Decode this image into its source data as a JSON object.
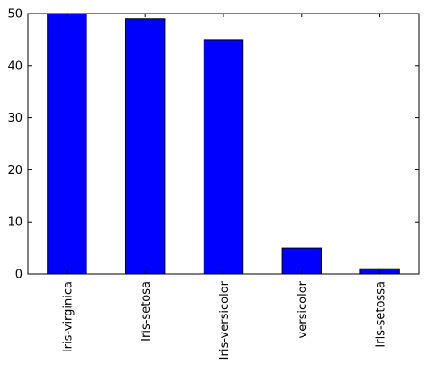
{
  "chart_data": {
    "type": "bar",
    "categories": [
      "Iris-virginica",
      "Iris-setosa",
      "Iris-versicolor",
      "versicolor",
      "Iris-setossa"
    ],
    "values": [
      50,
      49,
      45,
      5,
      1
    ],
    "ylim": [
      0,
      50
    ],
    "yticks": [
      0,
      10,
      20,
      30,
      40,
      50
    ],
    "bar_color": "#0000ff",
    "grid": false,
    "legend": "none",
    "xtick_rotation": "vertical"
  }
}
